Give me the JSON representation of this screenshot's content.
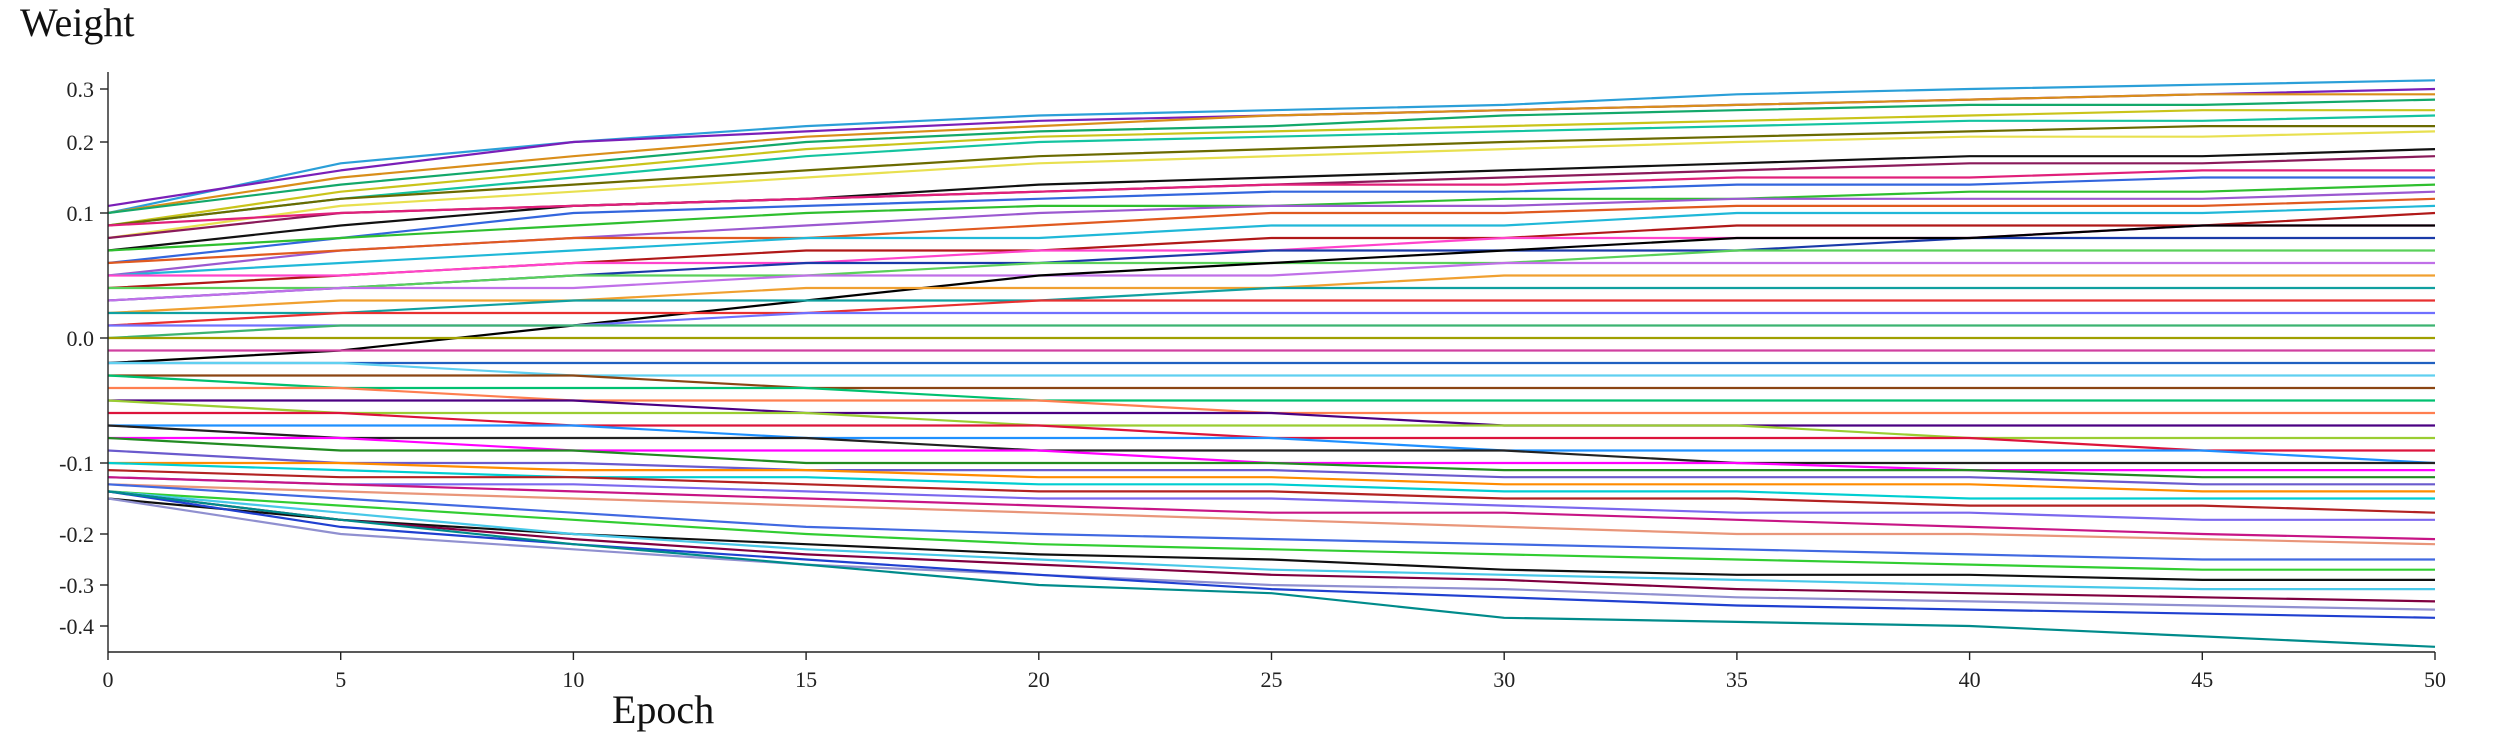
{
  "chart_data": {
    "type": "line",
    "title": "",
    "ylabel": "Weight",
    "xlabel": "Epoch",
    "xlim": [
      0,
      50
    ],
    "ylim": [
      -0.45,
      0.33
    ],
    "x_ticks": [
      "0",
      "5",
      "10",
      "15",
      "20",
      "25",
      "30",
      "35",
      "40",
      "45",
      "50"
    ],
    "y_ticks": [
      "0.3",
      "0.2",
      "0.1",
      "0.0",
      "-0.1",
      "-0.2",
      "-0.3",
      "-0.4"
    ],
    "grid": false,
    "legend": "none",
    "x": [
      0,
      5,
      10,
      15,
      20,
      25,
      30,
      35,
      40,
      45,
      50
    ],
    "series": [
      {
        "color": "#2b9fd8",
        "values": [
          0.1,
          0.17,
          0.2,
          0.23,
          0.25,
          0.26,
          0.27,
          0.29,
          0.3,
          0.31,
          0.32
        ]
      },
      {
        "color": "#7a1fb8",
        "values": [
          0.11,
          0.16,
          0.2,
          0.22,
          0.24,
          0.25,
          0.26,
          0.27,
          0.28,
          0.29,
          0.3
        ]
      },
      {
        "color": "#d98e1a",
        "values": [
          0.1,
          0.15,
          0.18,
          0.21,
          0.23,
          0.25,
          0.26,
          0.27,
          0.28,
          0.29,
          0.29
        ]
      },
      {
        "color": "#13a86a",
        "values": [
          0.1,
          0.14,
          0.17,
          0.2,
          0.22,
          0.23,
          0.25,
          0.26,
          0.27,
          0.27,
          0.28
        ]
      },
      {
        "color": "#c9c41a",
        "values": [
          0.09,
          0.13,
          0.16,
          0.19,
          0.21,
          0.22,
          0.23,
          0.24,
          0.25,
          0.26,
          0.26
        ]
      },
      {
        "color": "#14c4a0",
        "values": [
          0.09,
          0.12,
          0.15,
          0.18,
          0.2,
          0.21,
          0.22,
          0.23,
          0.24,
          0.24,
          0.25
        ]
      },
      {
        "color": "#6a6a00",
        "values": [
          0.09,
          0.12,
          0.14,
          0.16,
          0.18,
          0.19,
          0.2,
          0.21,
          0.22,
          0.23,
          0.23
        ]
      },
      {
        "color": "#e8e050",
        "values": [
          0.08,
          0.11,
          0.13,
          0.15,
          0.17,
          0.18,
          0.19,
          0.2,
          0.21,
          0.21,
          0.22
        ]
      },
      {
        "color": "#111111",
        "values": [
          0.07,
          0.09,
          0.11,
          0.12,
          0.14,
          0.15,
          0.16,
          0.17,
          0.18,
          0.18,
          0.19
        ]
      },
      {
        "color": "#8a1a5a",
        "values": [
          0.08,
          0.1,
          0.11,
          0.12,
          0.13,
          0.14,
          0.15,
          0.16,
          0.17,
          0.17,
          0.18
        ]
      },
      {
        "color": "#e0207a",
        "values": [
          0.09,
          0.1,
          0.11,
          0.12,
          0.13,
          0.14,
          0.14,
          0.15,
          0.15,
          0.16,
          0.16
        ]
      },
      {
        "color": "#3366dd",
        "values": [
          0.06,
          0.08,
          0.1,
          0.11,
          0.12,
          0.13,
          0.13,
          0.14,
          0.14,
          0.15,
          0.15
        ]
      },
      {
        "color": "#2fbf2f",
        "values": [
          0.07,
          0.08,
          0.09,
          0.1,
          0.11,
          0.11,
          0.12,
          0.12,
          0.13,
          0.13,
          0.14
        ]
      },
      {
        "color": "#9b59d0",
        "values": [
          0.05,
          0.07,
          0.08,
          0.09,
          0.1,
          0.11,
          0.11,
          0.12,
          0.12,
          0.12,
          0.13
        ]
      },
      {
        "color": "#e05a20",
        "values": [
          0.06,
          0.07,
          0.08,
          0.08,
          0.09,
          0.1,
          0.1,
          0.11,
          0.11,
          0.11,
          0.12
        ]
      },
      {
        "color": "#20b8d8",
        "values": [
          0.05,
          0.06,
          0.07,
          0.08,
          0.08,
          0.09,
          0.09,
          0.1,
          0.1,
          0.1,
          0.11
        ]
      },
      {
        "color": "#b01818",
        "values": [
          0.04,
          0.05,
          0.06,
          0.07,
          0.07,
          0.08,
          0.08,
          0.09,
          0.09,
          0.09,
          0.1
        ]
      },
      {
        "color": "#ff44cc",
        "values": [
          0.05,
          0.05,
          0.06,
          0.06,
          0.07,
          0.07,
          0.08,
          0.08,
          0.08,
          0.09,
          0.09
        ]
      },
      {
        "color": "#1a3aa8",
        "values": [
          0.03,
          0.04,
          0.05,
          0.06,
          0.06,
          0.07,
          0.07,
          0.07,
          0.08,
          0.08,
          0.08
        ]
      },
      {
        "color": "#5ad05a",
        "values": [
          0.04,
          0.04,
          0.05,
          0.05,
          0.06,
          0.06,
          0.06,
          0.07,
          0.07,
          0.07,
          0.07
        ]
      },
      {
        "color": "#c070e8",
        "values": [
          0.03,
          0.04,
          0.04,
          0.05,
          0.05,
          0.05,
          0.06,
          0.06,
          0.06,
          0.06,
          0.06
        ]
      },
      {
        "color": "#000000",
        "values": [
          -0.02,
          -0.01,
          0.01,
          0.03,
          0.05,
          0.06,
          0.07,
          0.08,
          0.08,
          0.09,
          0.09
        ]
      },
      {
        "color": "#f0a030",
        "values": [
          0.02,
          0.03,
          0.03,
          0.04,
          0.04,
          0.04,
          0.05,
          0.05,
          0.05,
          0.05,
          0.05
        ]
      },
      {
        "color": "#10a0a0",
        "values": [
          0.02,
          0.02,
          0.03,
          0.03,
          0.03,
          0.04,
          0.04,
          0.04,
          0.04,
          0.04,
          0.04
        ]
      },
      {
        "color": "#e83030",
        "values": [
          0.01,
          0.02,
          0.02,
          0.02,
          0.03,
          0.03,
          0.03,
          0.03,
          0.03,
          0.03,
          0.03
        ]
      },
      {
        "color": "#7070ff",
        "values": [
          0.01,
          0.01,
          0.01,
          0.02,
          0.02,
          0.02,
          0.02,
          0.02,
          0.02,
          0.02,
          0.02
        ]
      },
      {
        "color": "#3cb371",
        "values": [
          0.0,
          0.01,
          0.01,
          0.01,
          0.01,
          0.01,
          0.01,
          0.01,
          0.01,
          0.01,
          0.01
        ]
      },
      {
        "color": "#a0a000",
        "values": [
          0.0,
          0.0,
          0.0,
          0.0,
          0.0,
          0.0,
          0.0,
          0.0,
          0.0,
          0.0,
          0.0
        ]
      },
      {
        "color": "#d040a0",
        "values": [
          -0.01,
          -0.01,
          -0.01,
          -0.01,
          -0.01,
          -0.01,
          -0.01,
          -0.01,
          -0.01,
          -0.01,
          -0.01
        ]
      },
      {
        "color": "#2060c0",
        "values": [
          -0.02,
          -0.02,
          -0.02,
          -0.02,
          -0.02,
          -0.02,
          -0.02,
          -0.02,
          -0.02,
          -0.02,
          -0.02
        ]
      },
      {
        "color": "#60d0f0",
        "values": [
          -0.02,
          -0.02,
          -0.03,
          -0.03,
          -0.03,
          -0.03,
          -0.03,
          -0.03,
          -0.03,
          -0.03,
          -0.03
        ]
      },
      {
        "color": "#8b4513",
        "values": [
          -0.03,
          -0.03,
          -0.03,
          -0.04,
          -0.04,
          -0.04,
          -0.04,
          -0.04,
          -0.04,
          -0.04,
          -0.04
        ]
      },
      {
        "color": "#00c070",
        "values": [
          -0.03,
          -0.04,
          -0.04,
          -0.04,
          -0.05,
          -0.05,
          -0.05,
          -0.05,
          -0.05,
          -0.05,
          -0.05
        ]
      },
      {
        "color": "#ff7f50",
        "values": [
          -0.04,
          -0.04,
          -0.05,
          -0.05,
          -0.05,
          -0.06,
          -0.06,
          -0.06,
          -0.06,
          -0.06,
          -0.06
        ]
      },
      {
        "color": "#4b0082",
        "values": [
          -0.05,
          -0.05,
          -0.05,
          -0.06,
          -0.06,
          -0.06,
          -0.07,
          -0.07,
          -0.07,
          -0.07,
          -0.07
        ]
      },
      {
        "color": "#9acd32",
        "values": [
          -0.05,
          -0.06,
          -0.06,
          -0.06,
          -0.07,
          -0.07,
          -0.07,
          -0.07,
          -0.08,
          -0.08,
          -0.08
        ]
      },
      {
        "color": "#dc143c",
        "values": [
          -0.06,
          -0.06,
          -0.07,
          -0.07,
          -0.07,
          -0.08,
          -0.08,
          -0.08,
          -0.08,
          -0.09,
          -0.09
        ]
      },
      {
        "color": "#1e90ff",
        "values": [
          -0.07,
          -0.07,
          -0.07,
          -0.08,
          -0.08,
          -0.08,
          -0.09,
          -0.09,
          -0.09,
          -0.09,
          -0.1
        ]
      },
      {
        "color": "#222222",
        "values": [
          -0.07,
          -0.08,
          -0.08,
          -0.08,
          -0.09,
          -0.09,
          -0.09,
          -0.1,
          -0.1,
          -0.1,
          -0.1
        ]
      },
      {
        "color": "#ff00ff",
        "values": [
          -0.08,
          -0.08,
          -0.09,
          -0.09,
          -0.09,
          -0.1,
          -0.1,
          -0.1,
          -0.11,
          -0.11,
          -0.11
        ]
      },
      {
        "color": "#228b22",
        "values": [
          -0.08,
          -0.09,
          -0.09,
          -0.1,
          -0.1,
          -0.1,
          -0.11,
          -0.11,
          -0.11,
          -0.12,
          -0.12
        ]
      },
      {
        "color": "#6a5acd",
        "values": [
          -0.09,
          -0.1,
          -0.1,
          -0.11,
          -0.11,
          -0.11,
          -0.12,
          -0.12,
          -0.12,
          -0.13,
          -0.13
        ]
      },
      {
        "color": "#ff8c00",
        "values": [
          -0.1,
          -0.1,
          -0.11,
          -0.11,
          -0.12,
          -0.12,
          -0.13,
          -0.13,
          -0.13,
          -0.14,
          -0.14
        ]
      },
      {
        "color": "#00ced1",
        "values": [
          -0.1,
          -0.11,
          -0.12,
          -0.12,
          -0.13,
          -0.13,
          -0.14,
          -0.14,
          -0.15,
          -0.15,
          -0.15
        ]
      },
      {
        "color": "#b22222",
        "values": [
          -0.11,
          -0.12,
          -0.12,
          -0.13,
          -0.14,
          -0.14,
          -0.15,
          -0.15,
          -0.16,
          -0.16,
          -0.17
        ]
      },
      {
        "color": "#7b68ee",
        "values": [
          -0.12,
          -0.13,
          -0.13,
          -0.14,
          -0.15,
          -0.15,
          -0.16,
          -0.17,
          -0.17,
          -0.18,
          -0.18
        ]
      },
      {
        "color": "#c71585",
        "values": [
          -0.12,
          -0.13,
          -0.14,
          -0.15,
          -0.16,
          -0.17,
          -0.17,
          -0.18,
          -0.19,
          -0.2,
          -0.21
        ]
      },
      {
        "color": "#e9967a",
        "values": [
          -0.13,
          -0.14,
          -0.15,
          -0.16,
          -0.17,
          -0.18,
          -0.19,
          -0.2,
          -0.2,
          -0.21,
          -0.22
        ]
      },
      {
        "color": "#4169e1",
        "values": [
          -0.13,
          -0.15,
          -0.17,
          -0.19,
          -0.2,
          -0.21,
          -0.22,
          -0.23,
          -0.24,
          -0.25,
          -0.25
        ]
      },
      {
        "color": "#32cd32",
        "values": [
          -0.14,
          -0.16,
          -0.18,
          -0.2,
          -0.22,
          -0.23,
          -0.24,
          -0.25,
          -0.26,
          -0.27,
          -0.27
        ]
      },
      {
        "color": "#101010",
        "values": [
          -0.15,
          -0.18,
          -0.2,
          -0.22,
          -0.24,
          -0.25,
          -0.27,
          -0.28,
          -0.28,
          -0.29,
          -0.29
        ]
      },
      {
        "color": "#48c8e8",
        "values": [
          -0.14,
          -0.17,
          -0.2,
          -0.23,
          -0.25,
          -0.27,
          -0.28,
          -0.29,
          -0.3,
          -0.31,
          -0.31
        ]
      },
      {
        "color": "#800040",
        "values": [
          -0.14,
          -0.18,
          -0.21,
          -0.24,
          -0.26,
          -0.28,
          -0.29,
          -0.31,
          -0.32,
          -0.33,
          -0.34
        ]
      },
      {
        "color": "#9090d0",
        "values": [
          -0.15,
          -0.2,
          -0.23,
          -0.26,
          -0.28,
          -0.3,
          -0.31,
          -0.33,
          -0.34,
          -0.35,
          -0.36
        ]
      },
      {
        "color": "#2040d0",
        "values": [
          -0.14,
          -0.19,
          -0.22,
          -0.25,
          -0.28,
          -0.31,
          -0.33,
          -0.35,
          -0.36,
          -0.37,
          -0.38
        ]
      },
      {
        "color": "#008b8b",
        "values": [
          -0.14,
          -0.18,
          -0.22,
          -0.26,
          -0.3,
          -0.32,
          -0.38,
          -0.39,
          -0.4,
          -0.42,
          -0.44
        ]
      }
    ]
  }
}
